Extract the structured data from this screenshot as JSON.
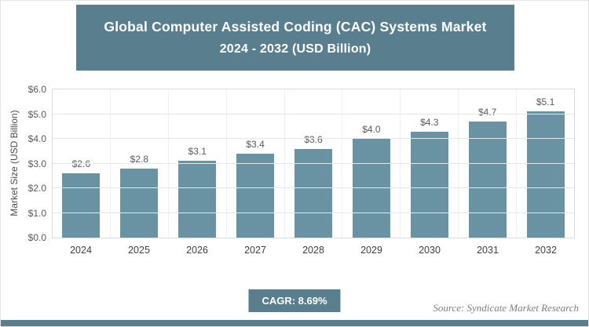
{
  "header": {
    "title_line1": "Global Computer Assisted Coding (CAC) Systems Market",
    "title_line2": "2024 - 2032 (USD Billion)"
  },
  "chart_data": {
    "type": "bar",
    "title": "Global Computer Assisted Coding (CAC) Systems Market 2024 - 2032 (USD Billion)",
    "categories": [
      "2024",
      "2025",
      "2026",
      "2027",
      "2028",
      "2029",
      "2030",
      "2031",
      "2032"
    ],
    "values": [
      2.6,
      2.8,
      3.1,
      3.4,
      3.6,
      4.0,
      4.3,
      4.7,
      5.1
    ],
    "value_labels": [
      "$2.6",
      "$2.8",
      "$3.1",
      "$3.4",
      "$3.6",
      "$4.0",
      "$4.3",
      "$4.7",
      "$5.1"
    ],
    "xlabel": "",
    "ylabel": "Market Size (USD Billion)",
    "ylim": [
      0,
      6
    ],
    "ytick_labels": [
      "$0.0",
      "$1.0",
      "$2.0",
      "$3.0",
      "$4.0",
      "$5.0",
      "$6.0"
    ],
    "grid": true,
    "legend": false
  },
  "footer": {
    "cagr_label": "CAGR: 8.69%",
    "source": "Source: Syndicate Market Research"
  },
  "colors": {
    "accent": "#597f8f",
    "bar": "#6992a2",
    "gridline": "#e5e7e8",
    "plot_border": "#d8dcde"
  }
}
